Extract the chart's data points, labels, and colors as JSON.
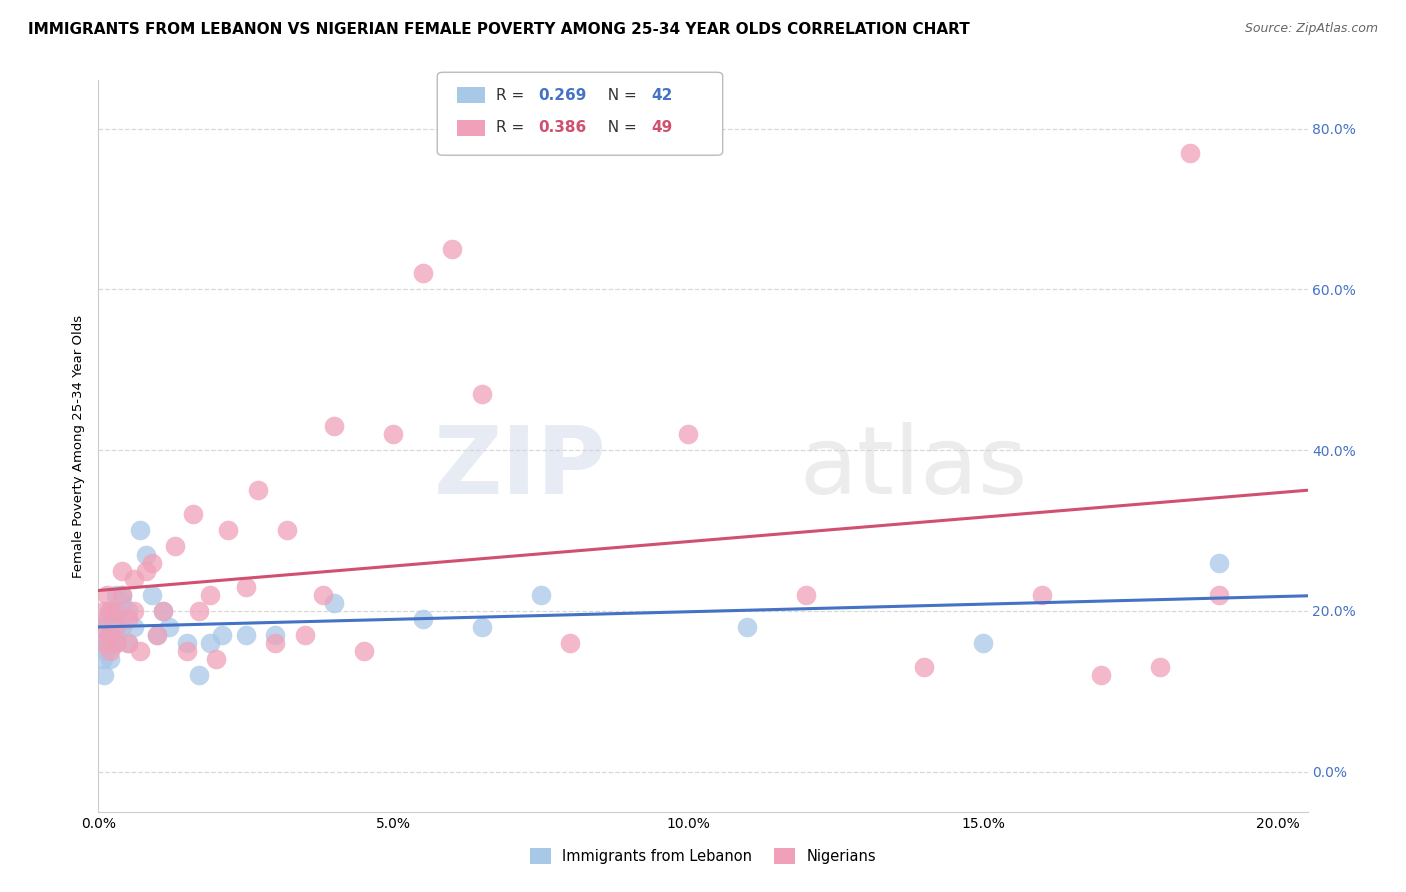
{
  "title": "IMMIGRANTS FROM LEBANON VS NIGERIAN FEMALE POVERTY AMONG 25-34 YEAR OLDS CORRELATION CHART",
  "source": "Source: ZipAtlas.com",
  "ylabel": "Female Poverty Among 25-34 Year Olds",
  "xmin": 0.0,
  "xmax": 0.205,
  "ymin": -0.05,
  "ymax": 0.86,
  "lebanon_R": 0.269,
  "lebanon_N": 42,
  "nigerian_R": 0.386,
  "nigerian_N": 49,
  "lebanon_color": "#a8c8e8",
  "nigerian_color": "#f0a0b8",
  "lebanon_line_color": "#4472c4",
  "nigerian_line_color": "#d05070",
  "legend_label1": "Immigrants from Lebanon",
  "legend_label2": "Nigerians",
  "background_color": "#ffffff",
  "right_tick_color": "#4472c4",
  "grid_color": "#d8d8d8",
  "lebanon_x": [
    0.0005,
    0.0008,
    0.001,
    0.001,
    0.0012,
    0.0015,
    0.0015,
    0.0018,
    0.002,
    0.002,
    0.002,
    0.0022,
    0.0025,
    0.003,
    0.003,
    0.003,
    0.003,
    0.004,
    0.004,
    0.004,
    0.005,
    0.005,
    0.006,
    0.007,
    0.008,
    0.009,
    0.01,
    0.011,
    0.012,
    0.015,
    0.017,
    0.019,
    0.021,
    0.025,
    0.03,
    0.04,
    0.055,
    0.065,
    0.075,
    0.11,
    0.15,
    0.19
  ],
  "lebanon_y": [
    0.16,
    0.14,
    0.12,
    0.18,
    0.15,
    0.19,
    0.16,
    0.2,
    0.16,
    0.18,
    0.14,
    0.17,
    0.2,
    0.16,
    0.19,
    0.22,
    0.17,
    0.22,
    0.18,
    0.21,
    0.16,
    0.2,
    0.18,
    0.3,
    0.27,
    0.22,
    0.17,
    0.2,
    0.18,
    0.16,
    0.12,
    0.16,
    0.17,
    0.17,
    0.17,
    0.21,
    0.19,
    0.18,
    0.22,
    0.18,
    0.16,
    0.26
  ],
  "nigerian_x": [
    0.0005,
    0.001,
    0.001,
    0.0015,
    0.002,
    0.002,
    0.002,
    0.003,
    0.003,
    0.003,
    0.004,
    0.004,
    0.005,
    0.005,
    0.006,
    0.006,
    0.007,
    0.008,
    0.009,
    0.01,
    0.011,
    0.013,
    0.015,
    0.016,
    0.017,
    0.019,
    0.02,
    0.022,
    0.025,
    0.027,
    0.03,
    0.032,
    0.035,
    0.038,
    0.04,
    0.045,
    0.05,
    0.055,
    0.06,
    0.065,
    0.08,
    0.1,
    0.12,
    0.14,
    0.16,
    0.17,
    0.18,
    0.185,
    0.19
  ],
  "nigerian_y": [
    0.18,
    0.2,
    0.16,
    0.22,
    0.17,
    0.2,
    0.15,
    0.18,
    0.2,
    0.16,
    0.22,
    0.25,
    0.19,
    0.16,
    0.24,
    0.2,
    0.15,
    0.25,
    0.26,
    0.17,
    0.2,
    0.28,
    0.15,
    0.32,
    0.2,
    0.22,
    0.14,
    0.3,
    0.23,
    0.35,
    0.16,
    0.3,
    0.17,
    0.22,
    0.43,
    0.15,
    0.42,
    0.62,
    0.65,
    0.47,
    0.16,
    0.42,
    0.22,
    0.13,
    0.22,
    0.12,
    0.13,
    0.77,
    0.22
  ]
}
